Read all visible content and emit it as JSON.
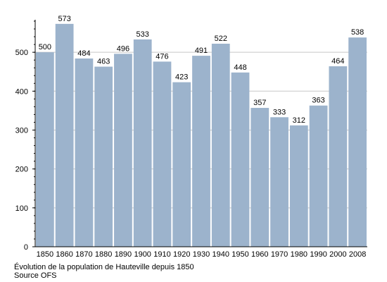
{
  "chart_data": {
    "type": "bar",
    "categories": [
      "1850",
      "1860",
      "1870",
      "1880",
      "1890",
      "1900",
      "1910",
      "1920",
      "1930",
      "1940",
      "1950",
      "1960",
      "1970",
      "1980",
      "1990",
      "2000",
      "2008"
    ],
    "values": [
      500,
      573,
      484,
      463,
      496,
      533,
      476,
      423,
      491,
      522,
      448,
      357,
      333,
      312,
      363,
      464,
      538
    ],
    "data_labels": [
      "500",
      "573",
      "484",
      "463",
      "496",
      "533",
      "476",
      "423",
      "491",
      "522",
      "448",
      "357",
      "333",
      "312",
      "363",
      "464",
      "538"
    ],
    "y_ticks": [
      "0",
      "100",
      "200",
      "300",
      "400",
      "500"
    ],
    "ylim": [
      0,
      580
    ],
    "grid": "horizontal",
    "colors": {
      "bar": "#9cb3cc",
      "grid": "#c8c8c8",
      "axis": "#000000"
    },
    "caption": "Évolution de la population de Hauteville depuis 1850",
    "source": "Source OFS"
  }
}
